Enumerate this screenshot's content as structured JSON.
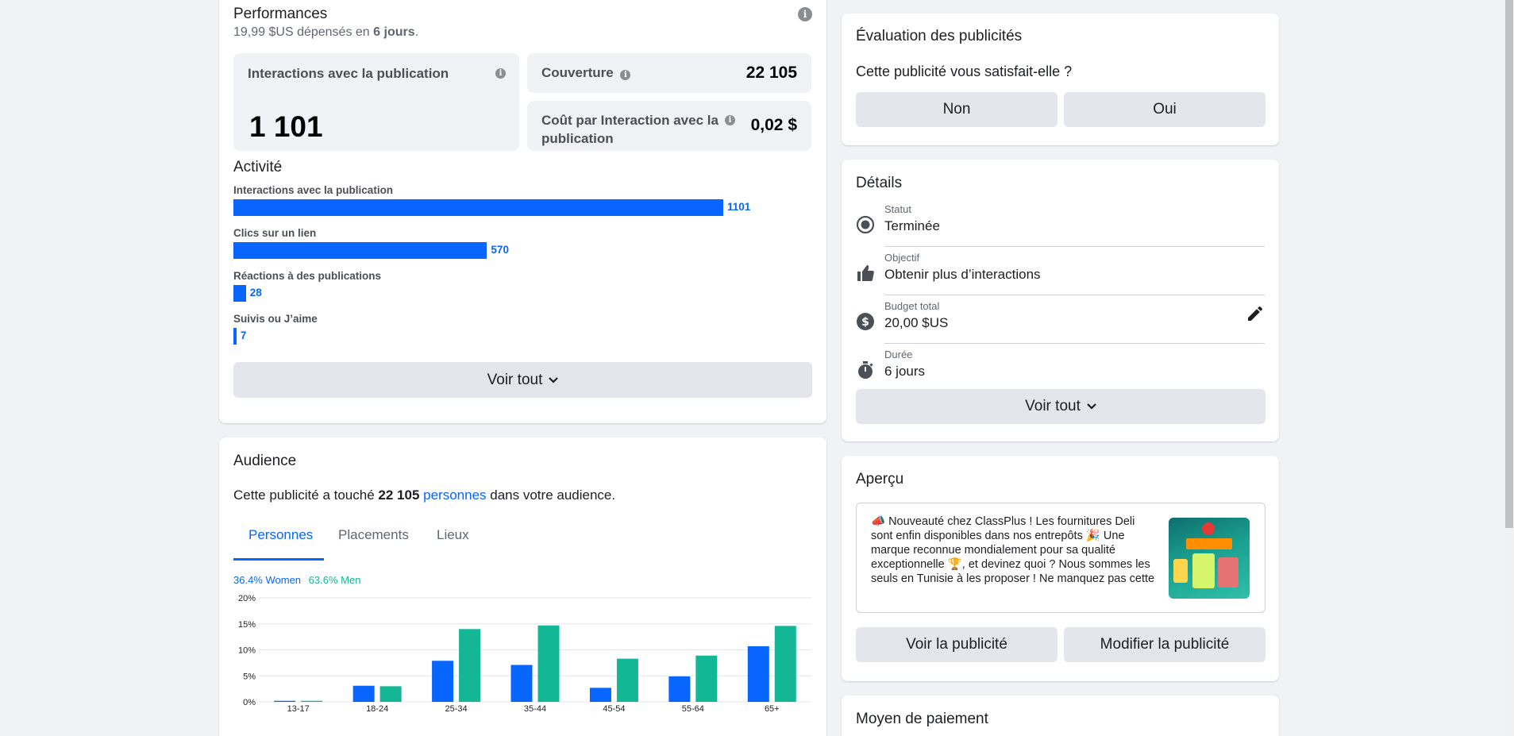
{
  "performance": {
    "title": "Performances",
    "spent_amount": "19,99 $US",
    "spent_mid": "dépensés en",
    "spent_days": "6 jours",
    "spent_end": ".",
    "interactions_label": "Interactions avec la publication",
    "interactions_value": "1 101",
    "couverture_label": "Couverture",
    "couverture_value": "22 105",
    "cost_label": "Coût par Interaction avec la publication",
    "cost_value": "0,02 $"
  },
  "activity": {
    "title": "Activité",
    "max_value": 1101,
    "items": [
      {
        "label": "Interactions avec la publication",
        "value": 1101,
        "display": "1101"
      },
      {
        "label": "Clics sur un lien",
        "value": 570,
        "display": "570"
      },
      {
        "label": "Réactions à des publications",
        "value": 28,
        "display": "28"
      },
      {
        "label": "Suivis ou J’aime",
        "value": 7,
        "display": "7"
      }
    ],
    "see_all": "Voir tout"
  },
  "audience": {
    "title": "Audience",
    "sentence_start": "Cette publicité a touché",
    "sentence_count": "22 105",
    "sentence_link": "personnes",
    "sentence_end": "dans votre audience.",
    "tabs": [
      "Personnes",
      "Placements",
      "Lieux"
    ],
    "women_legend": "36.4% Women",
    "men_legend": "63.6% Men",
    "women_color": "#0866ff",
    "men_color": "#13b796"
  },
  "chart_data": {
    "type": "bar",
    "categories": [
      "13-17",
      "18-24",
      "25-34",
      "35-44",
      "45-54",
      "55-64",
      "65+"
    ],
    "series": [
      {
        "name": "Women",
        "values": [
          0.2,
          3.1,
          7.9,
          7.1,
          2.7,
          4.9,
          10.7
        ]
      },
      {
        "name": "Men",
        "values": [
          0.2,
          3.0,
          14.0,
          14.7,
          8.3,
          8.9,
          14.6
        ]
      }
    ],
    "yticks": [
      "0%",
      "5%",
      "10%",
      "15%",
      "20%"
    ],
    "ylim": [
      0,
      20
    ],
    "grid": true,
    "legend": "top-left"
  },
  "evaluation": {
    "title": "Évaluation des publicités",
    "question": "Cette publicité vous satisfait-elle ?",
    "no": "Non",
    "yes": "Oui"
  },
  "details": {
    "title": "Détails",
    "status_label": "Statut",
    "status_value": "Terminée",
    "objective_label": "Objectif",
    "objective_value": "Obtenir plus d’interactions",
    "budget_label": "Budget total",
    "budget_value": "20,00 $US",
    "duration_label": "Durée",
    "duration_value": "6 jours",
    "see_all": "Voir tout"
  },
  "preview": {
    "title": "Aperçu",
    "text": "📣 Nouveauté chez ClassPlus ! Les fournitures Deli sont enfin disponibles dans nos entrepôts 🎉 Une marque reconnue mondialement pour sa qualité exceptionnelle 🏆, et devinez quoi ? Nous sommes les seuls en Tunisie à les proposer ! Ne manquez pas cette exclusivité 😉...",
    "view_ad": "Voir la publicité",
    "edit_ad": "Modifier la publicité"
  },
  "payment": {
    "title": "Moyen de paiement"
  }
}
